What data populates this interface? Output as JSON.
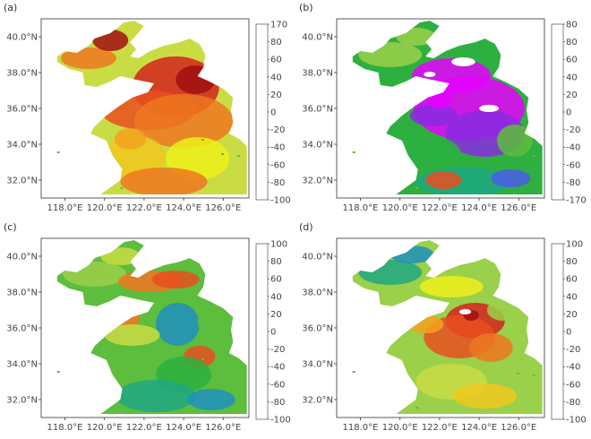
{
  "panels": [
    {
      "label": "(a)",
      "top": "170",
      "bottom": "-100",
      "mode": "a"
    },
    {
      "label": "(b)",
      "top": "80",
      "bottom": "-170",
      "mode": "b"
    },
    {
      "label": "(c)",
      "top": "100",
      "bottom": "-100",
      "mode": "c"
    },
    {
      "label": "(d)",
      "top": "100",
      "bottom": "-100",
      "mode": "d"
    }
  ],
  "colorbar": {
    "inner_labels": [
      "80",
      "60",
      "40",
      "20",
      "0",
      "-20",
      "-40",
      "-60",
      "-80"
    ],
    "colors": [
      "#e800ff",
      "#8a2be2",
      "#4a5de8",
      "#1e8fbe",
      "#1fa882",
      "#2db040",
      "#5dbd3d",
      "#9bd04a",
      "#c9dc44",
      "#eef01a",
      "#f0c81e",
      "#f3a21f",
      "#ef7720",
      "#e94f20",
      "#d4241e",
      "#a10f12"
    ]
  },
  "axes": {
    "lat_labels": [
      "40.0°N",
      "38.0°N",
      "36.0°N",
      "34.0°N",
      "32.0°N"
    ],
    "lon_labels": [
      "118.0°E",
      "120.0°E",
      "122.0°E",
      "124.0°E",
      "126.0°E"
    ]
  }
}
